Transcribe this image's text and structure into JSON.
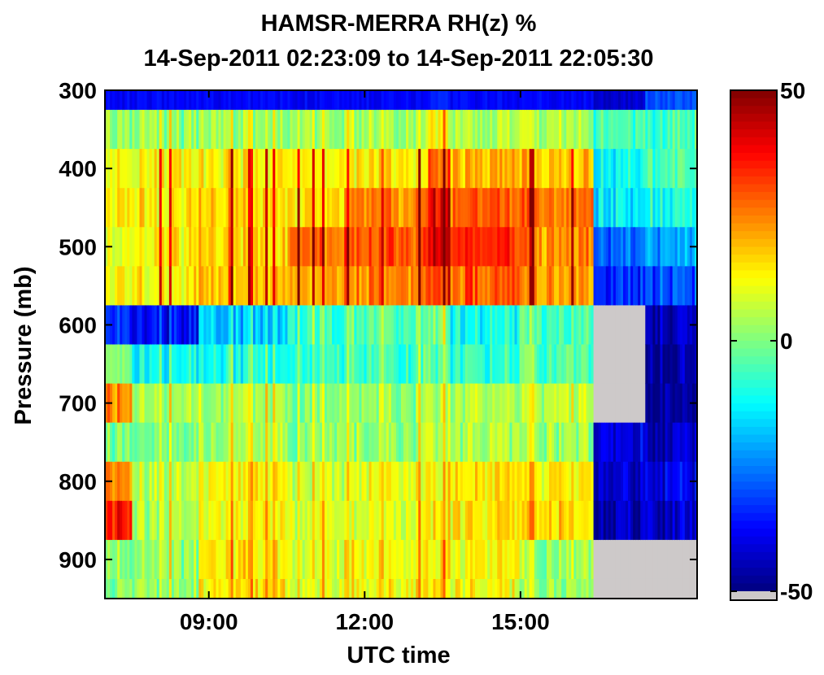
{
  "chart_data": {
    "type": "heatmap",
    "title": "HAMSR-MERRA RH(z) %",
    "subtitle": "14-Sep-2011 02:23:09 to 14-Sep-2011 22:05:30",
    "xlabel": "UTC time",
    "ylabel": "Pressure (mb)",
    "x_range_hours": [
      7.0,
      18.4
    ],
    "y_range_mb": [
      300,
      950
    ],
    "y_axis_reversed": true,
    "x_ticks": [
      {
        "value": 9,
        "label": "09:00"
      },
      {
        "value": 12,
        "label": "12:00"
      },
      {
        "value": 15,
        "label": "15:00"
      }
    ],
    "y_ticks": [
      {
        "value": 300,
        "label": "300"
      },
      {
        "value": 400,
        "label": "400"
      },
      {
        "value": 500,
        "label": "500"
      },
      {
        "value": 600,
        "label": "600"
      },
      {
        "value": 700,
        "label": "700"
      },
      {
        "value": 800,
        "label": "800"
      },
      {
        "value": 900,
        "label": "900"
      }
    ],
    "pressure_levels_mb": [
      300,
      350,
      400,
      450,
      500,
      550,
      600,
      650,
      700,
      750,
      800,
      850,
      900,
      950
    ],
    "level_baseline_rh_diff": [
      -38,
      2,
      15,
      20,
      24,
      18,
      -22,
      -10,
      2,
      4,
      8,
      12,
      2,
      4
    ],
    "time_segments": [
      {
        "start": 7.0,
        "end": 7.5,
        "profile": [
          -38,
          2,
          10,
          14,
          10,
          12,
          -32,
          0,
          24,
          0,
          26,
          36,
          0,
          2
        ]
      },
      {
        "start": 7.5,
        "end": 8.8,
        "profile": [
          -38,
          2,
          12,
          14,
          14,
          14,
          -38,
          -12,
          4,
          0,
          6,
          4,
          2,
          2
        ]
      },
      {
        "start": 8.8,
        "end": 10.5,
        "profile": [
          -38,
          2,
          14,
          16,
          16,
          18,
          -18,
          -10,
          4,
          4,
          12,
          12,
          14,
          14
        ]
      },
      {
        "start": 10.5,
        "end": 11.6,
        "profile": [
          -38,
          4,
          14,
          16,
          28,
          22,
          -6,
          -6,
          2,
          2,
          8,
          10,
          10,
          10
        ]
      },
      {
        "start": 11.6,
        "end": 13.2,
        "profile": [
          -38,
          4,
          14,
          24,
          30,
          24,
          -4,
          -6,
          2,
          2,
          10,
          10,
          12,
          12
        ]
      },
      {
        "start": 13.2,
        "end": 13.6,
        "profile": [
          -34,
          12,
          28,
          38,
          40,
          30,
          -2,
          -4,
          4,
          6,
          10,
          12,
          14,
          14
        ]
      },
      {
        "start": 13.6,
        "end": 15.0,
        "profile": [
          -38,
          4,
          20,
          28,
          32,
          28,
          -12,
          -8,
          4,
          4,
          14,
          14,
          12,
          12
        ]
      },
      {
        "start": 15.0,
        "end": 16.4,
        "profile": [
          -38,
          4,
          18,
          26,
          24,
          22,
          -6,
          -4,
          6,
          2,
          14,
          16,
          2,
          2
        ]
      },
      {
        "start": 16.4,
        "end": 17.4,
        "profile": [
          -42,
          -6,
          -12,
          -14,
          -28,
          -34,
          null,
          null,
          null,
          -40,
          -42,
          -44,
          null,
          null
        ]
      },
      {
        "start": 17.4,
        "end": 18.4,
        "profile": [
          -30,
          -6,
          -6,
          -10,
          -22,
          -30,
          -44,
          -48,
          -48,
          -44,
          -40,
          -44,
          null,
          null
        ]
      }
    ],
    "colorbar": {
      "min": -50,
      "max": 50,
      "tick_labels": [
        {
          "value": 50,
          "label": "50"
        },
        {
          "value": 0,
          "label": "0"
        },
        {
          "value": -50,
          "label": "-50"
        }
      ],
      "colormap": "jet",
      "no_data_color": "#cdc9c9"
    }
  }
}
